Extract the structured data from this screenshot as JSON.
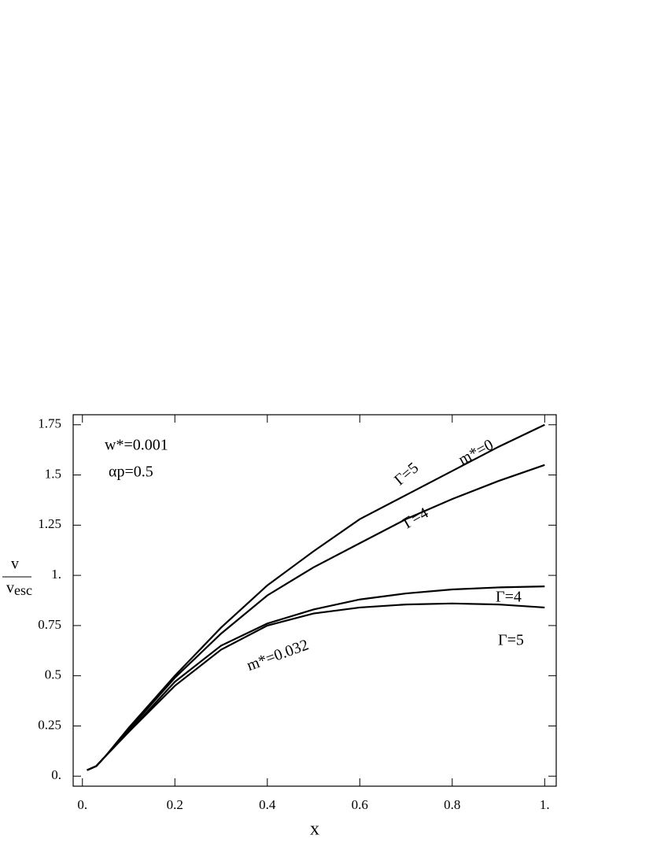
{
  "chart_data": {
    "type": "line",
    "xlabel": "x",
    "ylabel": {
      "numerator": "v",
      "denominator": "v",
      "denominator_sub": "esc"
    },
    "x": [
      0.01,
      0.03,
      0.05,
      0.1,
      0.2,
      0.3,
      0.4,
      0.5,
      0.6,
      0.7,
      0.8,
      0.9,
      1.0
    ],
    "series": [
      {
        "color": "#000000",
        "values": [
          0.03,
          0.05,
          0.1,
          0.24,
          0.5,
          0.74,
          0.95,
          1.12,
          1.28,
          1.4,
          1.52,
          1.64,
          1.75
        ]
      },
      {
        "color": "#000000",
        "values": [
          0.03,
          0.05,
          0.1,
          0.23,
          0.49,
          0.71,
          0.9,
          1.04,
          1.16,
          1.28,
          1.38,
          1.47,
          1.55
        ]
      },
      {
        "color": "#000000",
        "values": [
          0.03,
          0.05,
          0.1,
          0.22,
          0.47,
          0.65,
          0.76,
          0.83,
          0.88,
          0.91,
          0.93,
          0.94,
          0.945
        ]
      },
      {
        "color": "#000000",
        "values": [
          0.03,
          0.05,
          0.1,
          0.22,
          0.45,
          0.63,
          0.75,
          0.81,
          0.84,
          0.855,
          0.86,
          0.855,
          0.84
        ]
      }
    ],
    "xlim": [
      -0.02,
      1.025
    ],
    "ylim": [
      -0.05,
      1.8
    ],
    "xticks": [
      {
        "value": 0,
        "label": "0."
      },
      0.2,
      0.4,
      0.6,
      0.8,
      {
        "value": 1,
        "label": "1."
      }
    ],
    "yticks": [
      {
        "value": 0,
        "label": "0."
      },
      0.25,
      0.5,
      0.75,
      {
        "value": 1,
        "label": "1."
      },
      1.25,
      1.5,
      1.75
    ],
    "annotations": [
      "w*=0.001",
      "αp=0.5",
      "Γ=5",
      "m*=0",
      "Γ=4",
      "Γ=4",
      "m*=0.032",
      "Γ=5"
    ]
  }
}
